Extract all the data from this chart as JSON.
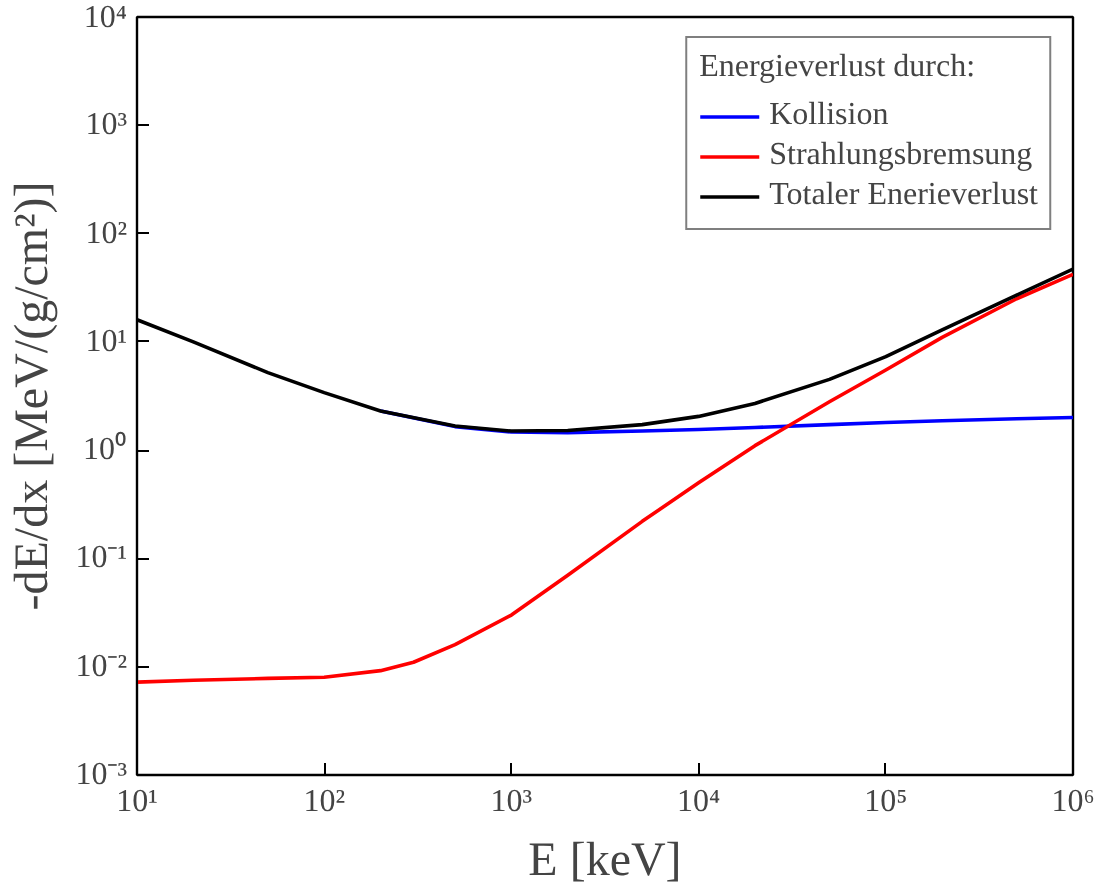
{
  "chart_data": {
    "type": "line",
    "xlabel": "E [keV]",
    "ylabel": "-dE/dx [MeV/(g/cm²)]",
    "legend_title": "Energieverlust durch:",
    "log": "xy",
    "grid": false,
    "legend": "top right",
    "line_style": "solid",
    "marker": "none",
    "xlim": [
      10,
      1000000
    ],
    "ylim": [
      0.001,
      10000
    ],
    "xticks": [
      {
        "value": 10,
        "label": "10¹"
      },
      {
        "value": 100,
        "label": "10²"
      },
      {
        "value": 1000,
        "label": "10³"
      },
      {
        "value": 10000,
        "label": "10⁴"
      },
      {
        "value": 100000,
        "label": "10⁵"
      },
      {
        "value": 1000000,
        "label": "10⁶"
      }
    ],
    "yticks": [
      {
        "value": 0.001,
        "label": "10⁻³"
      },
      {
        "value": 0.01,
        "label": "10⁻²"
      },
      {
        "value": 0.1,
        "label": "10⁻¹"
      },
      {
        "value": 1,
        "label": "10⁰"
      },
      {
        "value": 10,
        "label": "10¹"
      },
      {
        "value": 100,
        "label": "10²"
      },
      {
        "value": 1000,
        "label": "10³"
      },
      {
        "value": 10000,
        "label": "10⁴"
      }
    ],
    "series": [
      {
        "name": "Kollision",
        "color": "#0000ff",
        "x": [
          200,
          500,
          1000,
          2000,
          5000,
          10000,
          20000,
          50000,
          100000,
          200000,
          500000,
          1000000
        ],
        "values": [
          2.3,
          1.65,
          1.47,
          1.45,
          1.5,
          1.55,
          1.62,
          1.72,
          1.8,
          1.87,
          1.95,
          2.0
        ]
      },
      {
        "name": "Strahlungsbremsung",
        "color": "#ff0000",
        "x": [
          10,
          20,
          50,
          100,
          200,
          300,
          500,
          1000,
          2000,
          5000,
          10000,
          20000,
          50000,
          100000,
          200000,
          500000,
          1000000
        ],
        "values": [
          0.0072,
          0.0075,
          0.0078,
          0.008,
          0.0092,
          0.011,
          0.016,
          0.03,
          0.07,
          0.22,
          0.5,
          1.1,
          2.8,
          5.5,
          11,
          25,
          42
        ]
      },
      {
        "name": "Totaler Enerieverlust",
        "color": "#000000",
        "x": [
          10,
          20,
          50,
          100,
          200,
          500,
          1000,
          2000,
          5000,
          10000,
          20000,
          50000,
          100000,
          200000,
          500000,
          1000000
        ],
        "values": [
          16,
          10,
          5.2,
          3.4,
          2.3,
          1.67,
          1.5,
          1.52,
          1.72,
          2.05,
          2.7,
          4.5,
          7.3,
          12.9,
          27,
          47
        ]
      }
    ]
  }
}
